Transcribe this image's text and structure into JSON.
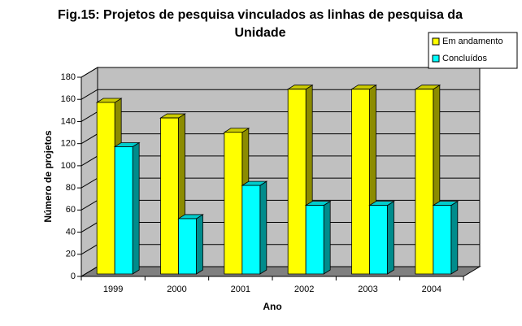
{
  "chart_data": {
    "type": "bar",
    "title": "Fig.15: Projetos de pesquisa vinculados as linhas de pesquisa da Unidade",
    "x_label": "Ano",
    "y_label": "Número de projetos",
    "categories": [
      "1999",
      "2000",
      "2001",
      "2002",
      "2003",
      "2004"
    ],
    "series": [
      {
        "name": "Em andamento",
        "color": "#ffff00",
        "values": [
          155,
          141,
          128,
          167,
          167,
          167
        ]
      },
      {
        "name": "Concluídos",
        "color": "#00ffff",
        "values": [
          115,
          50,
          80,
          62,
          62,
          62
        ]
      }
    ],
    "ylim": [
      0,
      180
    ],
    "yticks": [
      0,
      20,
      40,
      60,
      80,
      100,
      120,
      140,
      160,
      180
    ],
    "grid": true,
    "legend": "upper right"
  }
}
